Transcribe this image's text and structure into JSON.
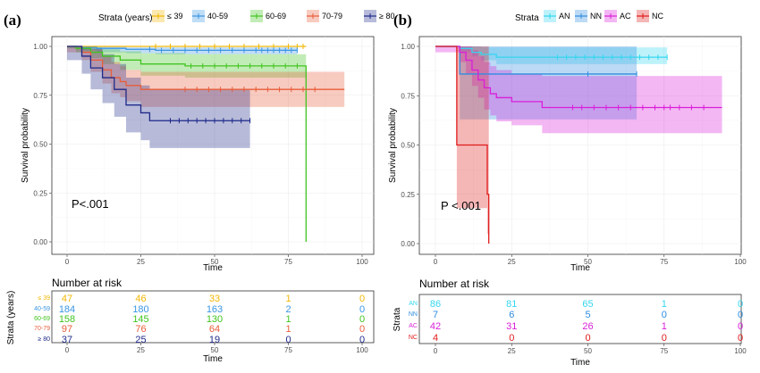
{
  "chart_data": [
    {
      "type": "line",
      "panel": "(a)",
      "legend": {
        "title": "Strata (years)",
        "placement": "top"
      },
      "xlabel": "Time",
      "ylabel": "Survival probability",
      "xlim": [
        0,
        100
      ],
      "ylim": [
        0,
        1
      ],
      "xticks": [
        0,
        25,
        50,
        75,
        100
      ],
      "yticks": [
        "0.00",
        "0.25",
        "0.50",
        "0.75",
        "1.00"
      ],
      "annotation": "P<.001",
      "grid": true,
      "series": [
        {
          "name": "≤ 39",
          "color": "#f2b705",
          "steps": [
            [
              0,
              1
            ],
            [
              81,
              1
            ]
          ],
          "ci": [
            [
              0,
              1,
              1
            ],
            [
              81,
              0.96,
              1
            ]
          ],
          "censor": [
            30,
            35,
            40,
            45,
            50,
            55,
            60,
            65,
            70,
            75,
            78,
            80
          ]
        },
        {
          "name": "40-59",
          "color": "#3a95e2",
          "steps": [
            [
              0,
              1
            ],
            [
              5,
              0.995
            ],
            [
              10,
              0.99
            ],
            [
              20,
              0.985
            ],
            [
              30,
              0.98
            ],
            [
              78,
              0.98
            ]
          ],
          "ci": [
            [
              0,
              1,
              1
            ],
            [
              5,
              0.98,
              1
            ],
            [
              10,
              0.97,
              1
            ],
            [
              20,
              0.965,
              0.995
            ],
            [
              30,
              0.96,
              0.995
            ],
            [
              78,
              0.96,
              0.995
            ]
          ],
          "censor": [
            28,
            32,
            36,
            40,
            44,
            48,
            52,
            56,
            60,
            64,
            66,
            68,
            70,
            72,
            74,
            76,
            78
          ]
        },
        {
          "name": "60-69",
          "color": "#41c41f",
          "steps": [
            [
              0,
              1
            ],
            [
              3,
              0.99
            ],
            [
              8,
              0.97
            ],
            [
              12,
              0.95
            ],
            [
              18,
              0.93
            ],
            [
              25,
              0.91
            ],
            [
              40,
              0.9
            ],
            [
              81,
              0.9
            ],
            [
              81,
              0
            ]
          ],
          "ci": [
            [
              0,
              0.99,
              1
            ],
            [
              3,
              0.97,
              1
            ],
            [
              8,
              0.94,
              0.995
            ],
            [
              12,
              0.91,
              0.985
            ],
            [
              18,
              0.88,
              0.975
            ],
            [
              25,
              0.85,
              0.965
            ],
            [
              40,
              0.84,
              0.96
            ],
            [
              81,
              0.84,
              0.96
            ]
          ],
          "censor": [
            42,
            46,
            50,
            54,
            58,
            62,
            66,
            70,
            74,
            78
          ]
        },
        {
          "name": "70-79",
          "color": "#e85d3a",
          "steps": [
            [
              0,
              1
            ],
            [
              5,
              0.97
            ],
            [
              8,
              0.93
            ],
            [
              12,
              0.88
            ],
            [
              15,
              0.84
            ],
            [
              18,
              0.82
            ],
            [
              20,
              0.8
            ],
            [
              25,
              0.78
            ],
            [
              94,
              0.78
            ]
          ],
          "ci": [
            [
              0,
              0.97,
              1
            ],
            [
              5,
              0.93,
              1
            ],
            [
              8,
              0.87,
              0.985
            ],
            [
              12,
              0.81,
              0.95
            ],
            [
              15,
              0.76,
              0.92
            ],
            [
              18,
              0.74,
              0.9
            ],
            [
              20,
              0.72,
              0.88
            ],
            [
              25,
              0.69,
              0.87
            ],
            [
              94,
              0.69,
              0.87
            ]
          ],
          "censor": [
            40,
            44,
            48,
            52,
            56,
            60,
            64,
            68,
            72,
            76,
            80,
            84
          ]
        },
        {
          "name": "≥ 80",
          "color": "#1f2a8a",
          "steps": [
            [
              0,
              1
            ],
            [
              5,
              0.95
            ],
            [
              8,
              0.89
            ],
            [
              12,
              0.84
            ],
            [
              16,
              0.78
            ],
            [
              20,
              0.7
            ],
            [
              25,
              0.66
            ],
            [
              28,
              0.62
            ],
            [
              62,
              0.62
            ]
          ],
          "ci": [
            [
              0,
              0.93,
              1
            ],
            [
              5,
              0.86,
              1
            ],
            [
              8,
              0.78,
              0.99
            ],
            [
              12,
              0.71,
              0.96
            ],
            [
              16,
              0.64,
              0.91
            ],
            [
              20,
              0.56,
              0.84
            ],
            [
              25,
              0.52,
              0.8
            ],
            [
              28,
              0.48,
              0.78
            ],
            [
              62,
              0.48,
              0.78
            ]
          ],
          "censor": [
            35,
            38,
            41,
            44,
            47,
            50,
            53,
            56,
            59,
            62
          ]
        }
      ],
      "risk_table": {
        "title": "Number at risk",
        "ylabel": "Strata (years)",
        "xlabel": "Time",
        "times": [
          0,
          25,
          50,
          75,
          100
        ],
        "rows": [
          {
            "label": "≤ 39",
            "values": [
              "47",
              "46",
              "33",
              "1",
              "0"
            ]
          },
          {
            "label": "40-59",
            "values": [
              "184",
              "180",
              "163",
              "2",
              "0"
            ]
          },
          {
            "label": "60-69",
            "values": [
              "158",
              "145",
              "130",
              "1",
              "0"
            ]
          },
          {
            "label": "70-79",
            "values": [
              "97",
              "76",
              "64",
              "1",
              "0"
            ]
          },
          {
            "label": "≥ 80",
            "values": [
              "37",
              "25",
              "19",
              "0",
              "0"
            ]
          }
        ]
      }
    },
    {
      "type": "line",
      "panel": "(b)",
      "legend": {
        "title": "Strata",
        "placement": "top"
      },
      "xlabel": "Time",
      "ylabel": "Survival probability",
      "xlim": [
        0,
        100
      ],
      "ylim": [
        0,
        1
      ],
      "xticks": [
        0,
        25,
        50,
        75,
        100
      ],
      "yticks": [
        "0.00",
        "0.25",
        "0.50",
        "0.75",
        "1.00"
      ],
      "annotation": "P <.001",
      "grid": true,
      "series": [
        {
          "name": "AN",
          "color": "#34d6f0",
          "steps": [
            [
              0,
              1
            ],
            [
              8,
              0.99
            ],
            [
              12,
              0.97
            ],
            [
              15,
              0.96
            ],
            [
              20,
              0.945
            ],
            [
              76,
              0.945
            ]
          ],
          "ci": [
            [
              0,
              1,
              1
            ],
            [
              8,
              0.97,
              1
            ],
            [
              12,
              0.95,
              1
            ],
            [
              15,
              0.93,
              0.995
            ],
            [
              20,
              0.91,
              0.995
            ],
            [
              76,
              0.91,
              0.995
            ]
          ],
          "censor": [
            40,
            43,
            46,
            49,
            52,
            55,
            58,
            61,
            64,
            67,
            70,
            73,
            76
          ]
        },
        {
          "name": "NN",
          "color": "#2f8de0",
          "steps": [
            [
              0,
              1
            ],
            [
              8,
              0.86
            ],
            [
              66,
              0.86
            ]
          ],
          "ci": [
            [
              0,
              1,
              1
            ],
            [
              8,
              0.63,
              1
            ],
            [
              66,
              0.63,
              1
            ]
          ],
          "censor": [
            50,
            66
          ]
        },
        {
          "name": "AC",
          "color": "#d91ed9",
          "steps": [
            [
              0,
              1
            ],
            [
              8,
              0.97
            ],
            [
              10,
              0.93
            ],
            [
              12,
              0.88
            ],
            [
              14,
              0.83
            ],
            [
              16,
              0.79
            ],
            [
              18,
              0.76
            ],
            [
              20,
              0.74
            ],
            [
              25,
              0.72
            ],
            [
              35,
              0.69
            ],
            [
              94,
              0.69
            ]
          ],
          "ci": [
            [
              0,
              0.97,
              1
            ],
            [
              8,
              0.92,
              1
            ],
            [
              10,
              0.86,
              1
            ],
            [
              12,
              0.8,
              0.98
            ],
            [
              14,
              0.74,
              0.95
            ],
            [
              16,
              0.68,
              0.92
            ],
            [
              18,
              0.65,
              0.9
            ],
            [
              20,
              0.62,
              0.88
            ],
            [
              25,
              0.6,
              0.86
            ],
            [
              35,
              0.56,
              0.85
            ],
            [
              94,
              0.56,
              0.85
            ]
          ],
          "censor": [
            45,
            48,
            52,
            56,
            60,
            64,
            68,
            72,
            75,
            77,
            80,
            84,
            88
          ]
        },
        {
          "name": "NC",
          "color": "#e01b1b",
          "steps": [
            [
              0,
              1
            ],
            [
              7,
              1
            ],
            [
              7,
              0.5
            ],
            [
              17,
              0.5
            ],
            [
              17,
              0.25
            ],
            [
              17.5,
              0.25
            ],
            [
              17.5,
              0
            ]
          ],
          "ci": [
            [
              0,
              1,
              1
            ],
            [
              7,
              0.18,
              1
            ],
            [
              17,
              0.05,
              1
            ],
            [
              17.5,
              0,
              1
            ]
          ],
          "censor": []
        }
      ],
      "risk_table": {
        "title": "Number at risk",
        "ylabel": "Strata",
        "xlabel": "Time",
        "times": [
          0,
          25,
          50,
          75,
          100
        ],
        "rows": [
          {
            "label": "AN",
            "values": [
              "86",
              "81",
              "65",
              "1",
              "0"
            ]
          },
          {
            "label": "NN",
            "values": [
              "7",
              "6",
              "5",
              "0",
              "0"
            ]
          },
          {
            "label": "AC",
            "values": [
              "42",
              "31",
              "26",
              "1",
              "0"
            ]
          },
          {
            "label": "NC",
            "values": [
              "4",
              "0",
              "0",
              "0",
              "0"
            ]
          }
        ]
      }
    }
  ]
}
